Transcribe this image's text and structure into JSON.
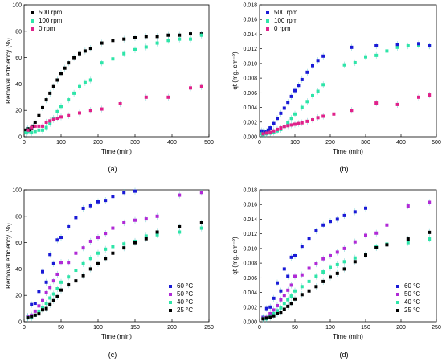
{
  "colors": {
    "black": "#000000",
    "teal": "#2ee5a8",
    "magenta": "#e0218a",
    "blue": "#1a1ad6",
    "purple": "#b02ad6",
    "errorbar": "#33bbbb"
  },
  "chart_data": [
    {
      "type": "scatter",
      "label": "(a)",
      "xlabel": "Time (min)",
      "ylabel": "Removal efficiency (%)",
      "xlim": [
        0,
        500
      ],
      "ylim": [
        0,
        100
      ],
      "xticks": [
        "0",
        "100",
        "200",
        "300",
        "400",
        "500"
      ],
      "yticks": [
        "0",
        "20",
        "40",
        "60",
        "80",
        "100"
      ],
      "legend_position": "top-left",
      "series": [
        {
          "name": "500 rpm",
          "color": "#000000",
          "x": [
            5,
            10,
            15,
            20,
            25,
            30,
            40,
            50,
            60,
            70,
            80,
            90,
            100,
            110,
            120,
            135,
            150,
            165,
            180,
            210,
            240,
            270,
            300,
            330,
            360,
            390,
            420,
            450,
            480
          ],
          "y": [
            5,
            6,
            5,
            6,
            8,
            11,
            16,
            22,
            28,
            33,
            38,
            43,
            48,
            52,
            56,
            60,
            63,
            65,
            67,
            71,
            73,
            74,
            75,
            76,
            76,
            77,
            77,
            78,
            78
          ]
        },
        {
          "name": "100 rpm",
          "color": "#2ee5a8",
          "x": [
            5,
            10,
            20,
            30,
            40,
            50,
            60,
            70,
            80,
            90,
            100,
            120,
            135,
            150,
            165,
            180,
            210,
            240,
            270,
            300,
            330,
            360,
            390,
            420,
            450,
            480
          ],
          "y": [
            3,
            4,
            3,
            4,
            5,
            5,
            7,
            10,
            14,
            19,
            23,
            28,
            33,
            38,
            41,
            43,
            56,
            59,
            63,
            66,
            68,
            71,
            73,
            74,
            74,
            77
          ]
        },
        {
          "name": "0 rpm",
          "color": "#e0218a",
          "x": [
            10,
            20,
            30,
            40,
            50,
            60,
            70,
            80,
            90,
            100,
            120,
            150,
            180,
            210,
            260,
            330,
            390,
            450,
            480
          ],
          "y": [
            5,
            7,
            8,
            8,
            8,
            11,
            12,
            13,
            14,
            15,
            16,
            18,
            20,
            21,
            25,
            30,
            30,
            37,
            38
          ]
        }
      ]
    },
    {
      "type": "scatter",
      "label": "(b)",
      "xlabel": "Time (min)",
      "ylabel": "qt (mg. cm⁻²)",
      "xlim": [
        0,
        500
      ],
      "ylim": [
        0,
        0.018
      ],
      "xticks": [
        "0",
        "100",
        "200",
        "300",
        "400",
        "500"
      ],
      "yticks": [
        "0.000",
        "0.002",
        "0.004",
        "0.006",
        "0.008",
        "0.010",
        "0.012",
        "0.014",
        "0.016",
        "0.018"
      ],
      "legend_position": "top-left",
      "series": [
        {
          "name": "500 rpm",
          "color": "#1a1ad6",
          "x": [
            5,
            10,
            15,
            20,
            25,
            30,
            40,
            50,
            60,
            70,
            80,
            90,
            100,
            110,
            120,
            135,
            150,
            165,
            180
          ],
          "y": [
            0.0008,
            0.0007,
            0.0006,
            0.0007,
            0.0009,
            0.0012,
            0.0018,
            0.0025,
            0.0032,
            0.0039,
            0.0047,
            0.0055,
            0.0063,
            0.007,
            0.0078,
            0.0088,
            0.0097,
            0.0104,
            0.011
          ]
        },
        {
          "name": "100 rpm",
          "color": "#2ee5a8",
          "x": [
            5,
            10,
            20,
            30,
            40,
            50,
            60,
            70,
            80,
            90,
            100,
            120,
            135,
            150,
            165,
            180,
            240,
            270,
            300,
            330,
            360,
            390,
            420,
            450,
            480
          ],
          "y": [
            0.0004,
            0.0003,
            0.0004,
            0.0005,
            0.0006,
            0.0008,
            0.001,
            0.0014,
            0.0019,
            0.0025,
            0.0031,
            0.004,
            0.0048,
            0.0056,
            0.0062,
            0.0071,
            0.0098,
            0.0101,
            0.0109,
            0.0111,
            0.0117,
            0.0122,
            0.0124,
            0.0125,
            0.0124
          ]
        },
        {
          "name": "0 rpm",
          "color": "#e0218a",
          "x": [
            10,
            20,
            30,
            40,
            50,
            60,
            70,
            80,
            90,
            100,
            110,
            120,
            135,
            150,
            165,
            180,
            210,
            260,
            330,
            390,
            450,
            480
          ],
          "y": [
            0.0004,
            0.0005,
            0.0006,
            0.0008,
            0.001,
            0.0012,
            0.0014,
            0.0015,
            0.0016,
            0.0017,
            0.0018,
            0.0019,
            0.0021,
            0.0023,
            0.0026,
            0.0028,
            0.0031,
            0.0036,
            0.0046,
            0.0044,
            0.0054,
            0.0057
          ]
        },
        {
          "name": "",
          "color": "#1a1ad6",
          "x": [
            260,
            330,
            390,
            450,
            480
          ],
          "y": [
            0.0122,
            0.0124,
            0.0126,
            0.0127,
            0.0124
          ]
        }
      ]
    },
    {
      "type": "scatter",
      "label": "(c)",
      "xlabel": "Time (min)",
      "ylabel": "Removal efficiency (%)",
      "xlim": [
        0,
        250
      ],
      "ylim": [
        0,
        100
      ],
      "xticks": [
        "0",
        "50",
        "100",
        "150",
        "200",
        "250"
      ],
      "yticks": [
        "0",
        "20",
        "40",
        "60",
        "80",
        "100"
      ],
      "legend_position": "bottom-right",
      "series": [
        {
          "name": "60 °C",
          "color": "#1a1ad6",
          "x": [
            5,
            10,
            15,
            20,
            25,
            30,
            35,
            40,
            45,
            50,
            60,
            70,
            80,
            90,
            100,
            110,
            120,
            135,
            150
          ],
          "y": [
            4,
            13,
            14,
            23,
            38,
            30,
            51,
            44,
            62,
            64,
            72,
            79,
            86,
            88,
            91,
            92,
            95,
            98,
            99
          ]
        },
        {
          "name": "50 °C",
          "color": "#b02ad6",
          "x": [
            5,
            10,
            15,
            20,
            25,
            30,
            35,
            40,
            45,
            50,
            60,
            70,
            80,
            90,
            100,
            110,
            120,
            135,
            150,
            165,
            180,
            210,
            240
          ],
          "y": [
            4,
            5,
            8,
            12,
            16,
            22,
            26,
            31,
            36,
            45,
            45,
            52,
            56,
            61,
            64,
            67,
            71,
            75,
            77,
            78,
            80,
            96,
            98
          ]
        },
        {
          "name": "40 °C",
          "color": "#2ee5a8",
          "x": [
            5,
            10,
            15,
            20,
            25,
            30,
            35,
            40,
            45,
            50,
            60,
            70,
            80,
            90,
            100,
            110,
            120,
            135,
            150,
            165,
            180,
            210,
            240
          ],
          "y": [
            3,
            3,
            5,
            8,
            11,
            14,
            18,
            21,
            25,
            30,
            34,
            39,
            44,
            48,
            52,
            55,
            57,
            59,
            61,
            65,
            66,
            68,
            71
          ]
        },
        {
          "name": "25 °C",
          "color": "#000000",
          "x": [
            5,
            10,
            15,
            20,
            25,
            30,
            35,
            40,
            45,
            50,
            60,
            70,
            80,
            90,
            100,
            110,
            120,
            135,
            150,
            165,
            180,
            210,
            240
          ],
          "y": [
            3,
            4,
            5,
            6,
            9,
            10,
            13,
            16,
            19,
            24,
            28,
            31,
            35,
            40,
            44,
            48,
            52,
            56,
            60,
            63,
            68,
            72,
            75
          ]
        }
      ]
    },
    {
      "type": "scatter",
      "label": "(d)",
      "xlabel": "Time (min)",
      "ylabel": "qt (mg. cm⁻²)",
      "xlim": [
        0,
        250
      ],
      "ylim": [
        0,
        0.018
      ],
      "xticks": [
        "0",
        "50",
        "100",
        "150",
        "200",
        "250"
      ],
      "yticks": [
        "0.000",
        "0.002",
        "0.004",
        "0.006",
        "0.008",
        "0.010",
        "0.012",
        "0.014",
        "0.016",
        "0.018"
      ],
      "legend_position": "bottom-right",
      "series": [
        {
          "name": "60 °C",
          "color": "#1a1ad6",
          "x": [
            5,
            10,
            15,
            20,
            25,
            30,
            35,
            40,
            45,
            50,
            60,
            70,
            80,
            90,
            100,
            110,
            120,
            135,
            150
          ],
          "y": [
            0.0006,
            0.0018,
            0.002,
            0.0032,
            0.0053,
            0.0042,
            0.0072,
            0.0062,
            0.0088,
            0.009,
            0.0103,
            0.0114,
            0.0124,
            0.0132,
            0.0137,
            0.014,
            0.0145,
            0.015,
            0.0155
          ]
        },
        {
          "name": "50 °C",
          "color": "#b02ad6",
          "x": [
            5,
            10,
            15,
            20,
            25,
            30,
            35,
            40,
            45,
            50,
            60,
            70,
            80,
            90,
            100,
            110,
            120,
            135,
            150,
            165,
            180,
            210,
            240
          ],
          "y": [
            0.0005,
            0.0006,
            0.0011,
            0.0016,
            0.0022,
            0.003,
            0.0036,
            0.0043,
            0.005,
            0.0062,
            0.0064,
            0.0073,
            0.0079,
            0.0086,
            0.009,
            0.0095,
            0.01,
            0.0109,
            0.0118,
            0.0121,
            0.0132,
            0.0158,
            0.0163
          ]
        },
        {
          "name": "40 °C",
          "color": "#2ee5a8",
          "x": [
            5,
            10,
            15,
            20,
            25,
            30,
            35,
            40,
            45,
            50,
            60,
            70,
            80,
            90,
            100,
            110,
            120,
            135,
            150,
            165,
            180,
            210,
            240
          ],
          "y": [
            0.0004,
            0.0004,
            0.0007,
            0.0011,
            0.0015,
            0.0019,
            0.0025,
            0.003,
            0.0035,
            0.0042,
            0.0048,
            0.0055,
            0.0062,
            0.0068,
            0.0074,
            0.0078,
            0.0082,
            0.0087,
            0.0092,
            0.0102,
            0.0106,
            0.0108,
            0.0113
          ]
        },
        {
          "name": "25 °C",
          "color": "#000000",
          "x": [
            5,
            10,
            15,
            20,
            25,
            30,
            35,
            40,
            45,
            50,
            60,
            70,
            80,
            90,
            100,
            110,
            120,
            135,
            150,
            165,
            180,
            210,
            240
          ],
          "y": [
            0.0004,
            0.0005,
            0.0006,
            0.0008,
            0.0011,
            0.0013,
            0.0017,
            0.0021,
            0.0025,
            0.0031,
            0.0037,
            0.0042,
            0.0048,
            0.0055,
            0.0061,
            0.0066,
            0.0072,
            0.0082,
            0.0091,
            0.0101,
            0.0105,
            0.0113,
            0.0122
          ]
        }
      ]
    }
  ]
}
